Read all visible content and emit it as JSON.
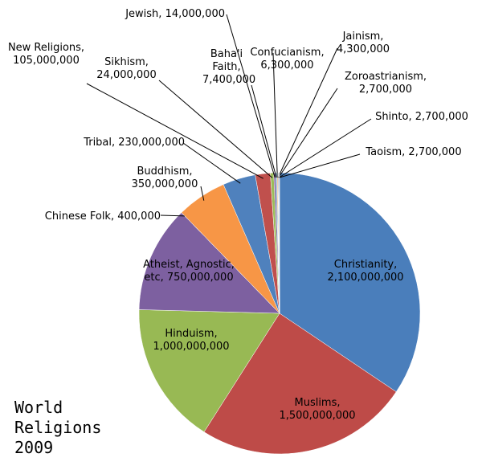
{
  "chart_data": {
    "type": "pie",
    "title": "World Religions 2009",
    "categories": [
      "Christianity,",
      "Muslims,",
      "Hinduism,",
      "Atheist, Agnostic, etc,",
      "Chinese Folk,",
      "Buddhism,",
      "Tribal,",
      "New Religions,",
      "Sikhism,",
      "Jewish,",
      "Baha'i Faith,",
      "Confucianism,",
      "Jainism,",
      "Zoroastrianism,",
      "Shinto,",
      "Taoism,"
    ],
    "values": [
      2100000000,
      1500000000,
      1000000000,
      750000000,
      400000,
      350000000,
      230000000,
      105000000,
      24000000,
      14000000,
      7400000,
      6300000,
      4300000,
      2700000,
      2700000,
      2700000
    ],
    "value_labels": [
      "2,100,000,000",
      "1,500,000,000",
      "1,000,000,000",
      "750,000,000",
      "400,000",
      "350,000,000",
      "230,000,000",
      "105,000,000",
      "24,000,000",
      "14,000,000",
      "7,400,000",
      "6,300,000",
      "4,300,000",
      "2,700,000",
      "2,700,000",
      "2,700,000"
    ],
    "colors": [
      "#4a7ebb",
      "#be4b48",
      "#98b954",
      "#7d60a0",
      "#46aac5",
      "#f79646",
      "#4f81bd",
      "#c0504d",
      "#9bbb59",
      "#8064a2",
      "#4bacc6",
      "#f79646",
      "#2c4d75",
      "#772c2a",
      "#5f7530",
      "#4d3b62"
    ]
  }
}
